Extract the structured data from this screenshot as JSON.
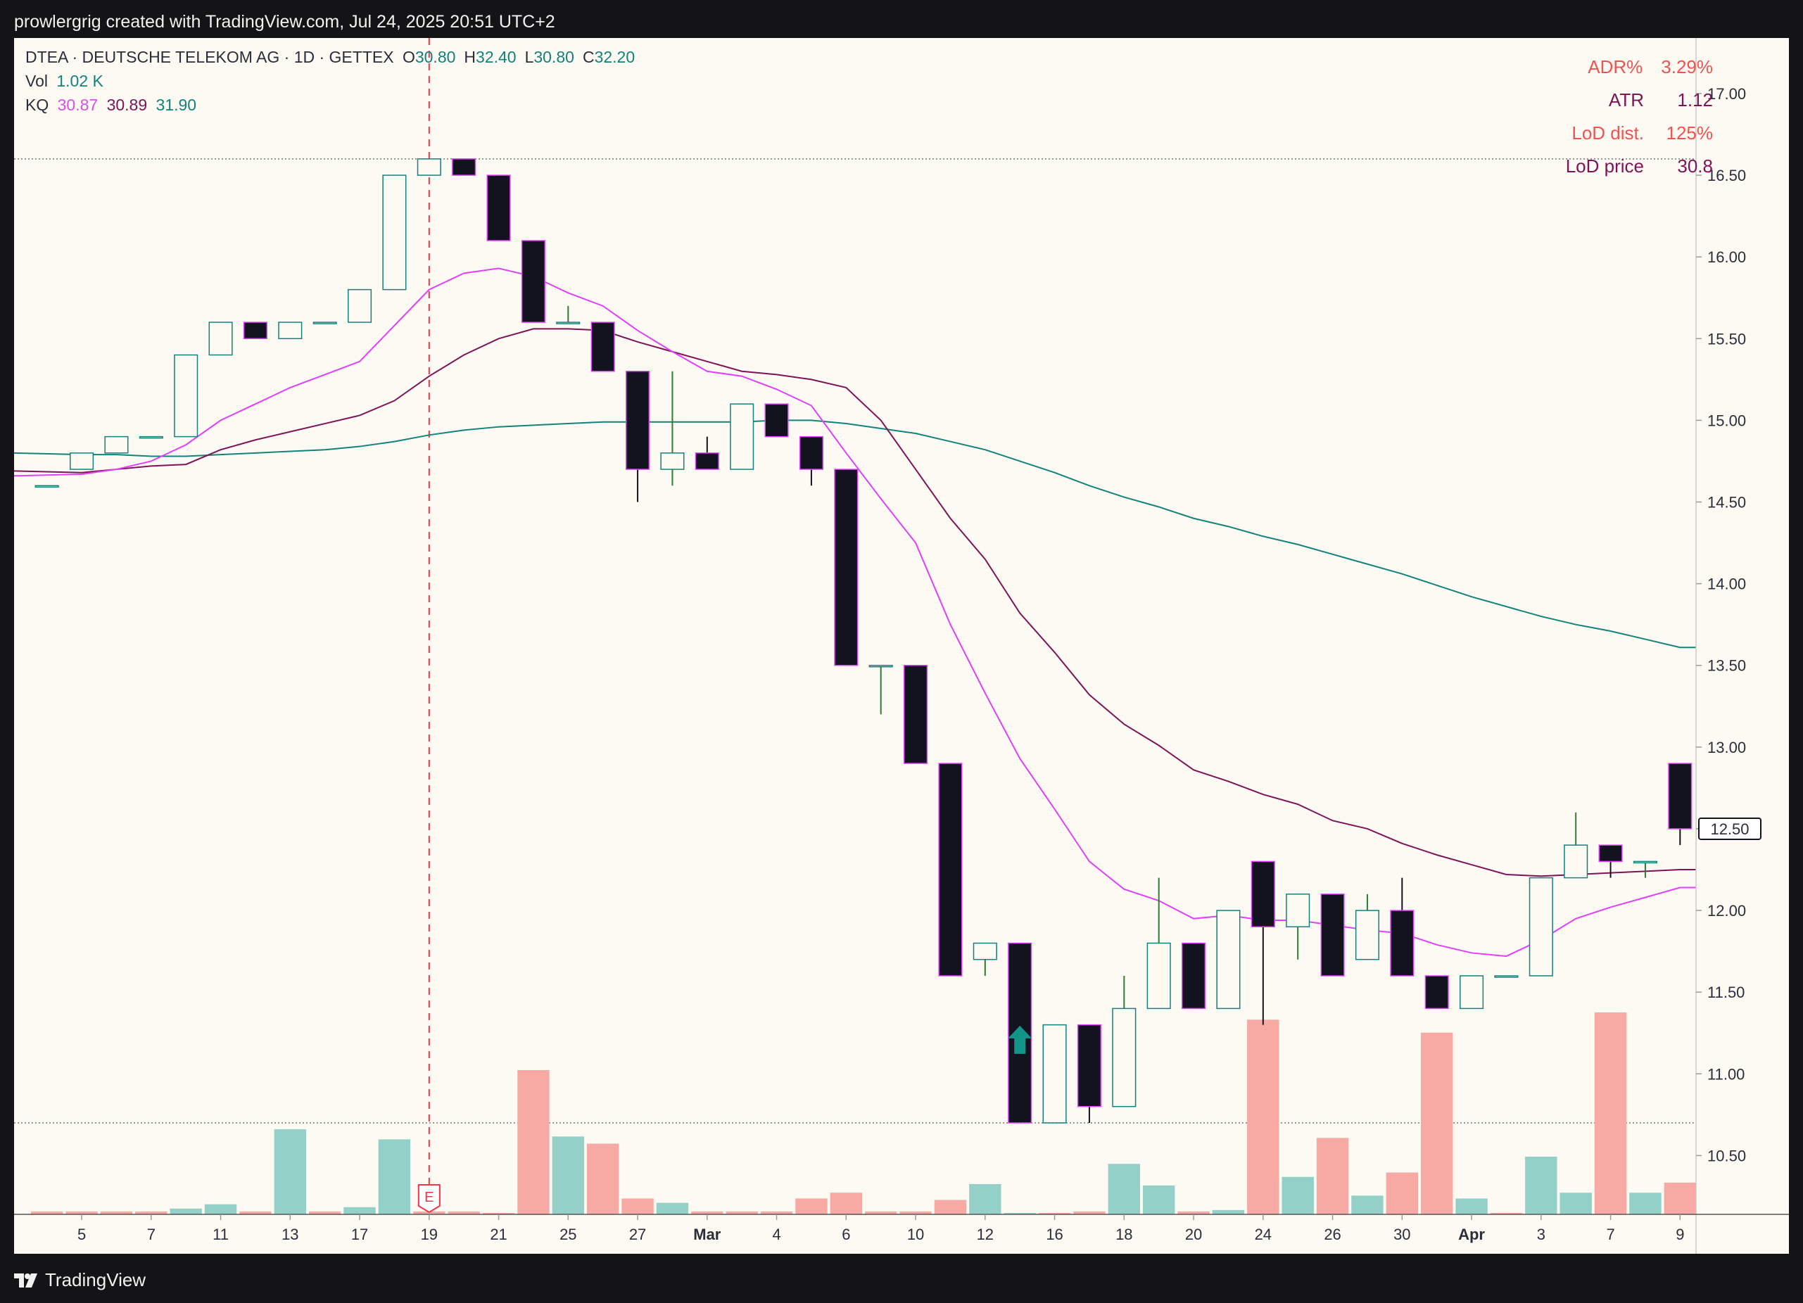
{
  "header": {
    "title": "prowlergrig created with TradingView.com, Jul 24, 2025 20:51 UTC+2"
  },
  "footer": {
    "brand": "TradingView"
  },
  "legend": {
    "symbol": "DTEA · DEUTSCHE TELEKOM AG · 1D · GETTEX",
    "ohlc": [
      {
        "key": "O",
        "value": "30.80"
      },
      {
        "key": "H",
        "value": "32.40"
      },
      {
        "key": "L",
        "value": "30.80"
      },
      {
        "key": "C",
        "value": "32.20"
      }
    ],
    "vol_label": "Vol",
    "vol_value": "1.02 K",
    "kq_label": "KQ",
    "kq_values": [
      "30.87",
      "30.89",
      "31.90"
    ]
  },
  "stats": [
    {
      "label": "ADR%",
      "value": "3.29%",
      "color": "#f05350"
    },
    {
      "label": "ATR",
      "value": "1.12",
      "color": "#7d1457"
    },
    {
      "label": "LoD dist.",
      "value": "125%",
      "color": "#f05350"
    },
    {
      "label": "LoD price",
      "value": "30.8",
      "color": "#7d1457"
    }
  ],
  "colors": {
    "bg": "#fdfaf3",
    "up_body": "#fdfaf3",
    "up_border": "#13827a",
    "down_body": "#13131f",
    "down_border": "#e040fb",
    "wick_up": "#2e7d32",
    "wick_down": "#13131f",
    "vol_up": "#93d1c8",
    "vol_down": "#f7a9a4",
    "ma_fast": "#e040fb",
    "ma_mid": "#7d1457",
    "ma_slow": "#13827a",
    "earnings": "#f23645",
    "arrow": "#129488"
  },
  "chart_data": {
    "type": "candlestick",
    "y_range": [
      10.14,
      17.34
    ],
    "y_ticks": [
      "10.50",
      "11.00",
      "11.50",
      "12.00",
      "12.50",
      "13.00",
      "13.50",
      "14.00",
      "14.50",
      "15.00",
      "15.50",
      "16.00",
      "16.50",
      "17.00"
    ],
    "x_ticks": [
      {
        "label": "5",
        "i": 1
      },
      {
        "label": "7",
        "i": 3
      },
      {
        "label": "11",
        "i": 5
      },
      {
        "label": "13",
        "i": 7
      },
      {
        "label": "17",
        "i": 9
      },
      {
        "label": "19",
        "i": 11
      },
      {
        "label": "21",
        "i": 13
      },
      {
        "label": "25",
        "i": 15
      },
      {
        "label": "27",
        "i": 17
      },
      {
        "label": "Mar",
        "i": 19,
        "bold": true
      },
      {
        "label": "4",
        "i": 21
      },
      {
        "label": "6",
        "i": 23
      },
      {
        "label": "10",
        "i": 25
      },
      {
        "label": "12",
        "i": 27
      },
      {
        "label": "16",
        "i": 29
      },
      {
        "label": "18",
        "i": 31
      },
      {
        "label": "20",
        "i": 33
      },
      {
        "label": "24",
        "i": 35
      },
      {
        "label": "26",
        "i": 37
      },
      {
        "label": "30",
        "i": 39
      },
      {
        "label": "Apr",
        "i": 41,
        "bold": true
      },
      {
        "label": "3",
        "i": 43
      },
      {
        "label": "7",
        "i": 45
      },
      {
        "label": "9",
        "i": 47
      }
    ],
    "candles": [
      [
        14.6,
        14.6,
        14.6,
        14.6
      ],
      [
        14.7,
        14.8,
        14.7,
        14.8
      ],
      [
        14.8,
        14.9,
        14.8,
        14.9
      ],
      [
        14.9,
        14.9,
        14.9,
        14.9
      ],
      [
        14.9,
        15.4,
        14.9,
        15.4
      ],
      [
        15.4,
        15.6,
        15.4,
        15.6
      ],
      [
        15.6,
        15.6,
        15.5,
        15.5
      ],
      [
        15.5,
        15.6,
        15.5,
        15.6
      ],
      [
        15.6,
        15.6,
        15.6,
        15.6
      ],
      [
        15.6,
        15.8,
        15.6,
        15.8
      ],
      [
        15.8,
        16.5,
        15.8,
        16.5
      ],
      [
        16.5,
        16.6,
        16.5,
        16.6
      ],
      [
        16.6,
        16.6,
        16.5,
        16.5
      ],
      [
        16.5,
        16.5,
        16.1,
        16.1
      ],
      [
        16.1,
        16.1,
        15.6,
        15.6
      ],
      [
        15.6,
        15.7,
        15.6,
        15.6
      ],
      [
        15.6,
        15.6,
        15.3,
        15.3
      ],
      [
        15.3,
        15.3,
        14.5,
        14.7
      ],
      [
        14.7,
        15.3,
        14.6,
        14.8
      ],
      [
        14.8,
        14.9,
        14.7,
        14.7
      ],
      [
        14.7,
        15.1,
        14.7,
        15.1
      ],
      [
        15.1,
        15.1,
        14.9,
        14.9
      ],
      [
        14.9,
        14.9,
        14.6,
        14.7
      ],
      [
        14.7,
        14.7,
        13.5,
        13.5
      ],
      [
        13.5,
        13.5,
        13.2,
        13.5
      ],
      [
        13.5,
        13.5,
        12.9,
        12.9
      ],
      [
        12.9,
        12.9,
        11.6,
        11.6
      ],
      [
        11.7,
        11.8,
        11.6,
        11.8
      ],
      [
        11.8,
        11.8,
        10.7,
        10.7
      ],
      [
        10.7,
        11.3,
        10.7,
        11.3
      ],
      [
        11.3,
        11.3,
        10.7,
        10.8
      ],
      [
        10.8,
        11.6,
        10.8,
        11.4
      ],
      [
        11.4,
        12.2,
        11.4,
        11.8
      ],
      [
        11.8,
        11.8,
        11.4,
        11.4
      ],
      [
        11.4,
        12.0,
        11.4,
        12.0
      ],
      [
        12.3,
        12.3,
        11.3,
        11.9
      ],
      [
        11.9,
        12.1,
        11.7,
        12.1
      ],
      [
        12.1,
        12.1,
        11.6,
        11.6
      ],
      [
        11.7,
        12.1,
        11.7,
        12.0
      ],
      [
        12.0,
        12.2,
        11.6,
        11.6
      ],
      [
        11.6,
        11.6,
        11.4,
        11.4
      ],
      [
        11.4,
        11.6,
        11.4,
        11.6
      ],
      [
        11.6,
        11.6,
        11.6,
        11.6
      ],
      [
        11.6,
        12.2,
        11.6,
        12.2
      ],
      [
        12.2,
        12.6,
        12.2,
        12.4
      ],
      [
        12.4,
        12.4,
        12.2,
        12.3
      ],
      [
        12.3,
        12.3,
        12.2,
        12.3
      ],
      [
        12.9,
        12.9,
        12.4,
        12.5
      ]
    ],
    "volume_scale_max": 1.0,
    "volumes": [
      0.02,
      0.02,
      0.02,
      0.02,
      0.04,
      0.07,
      0.02,
      0.59,
      0.02,
      0.05,
      0.52,
      0.02,
      0.02,
      0.01,
      1.0,
      0.54,
      0.49,
      0.11,
      0.08,
      0.02,
      0.02,
      0.02,
      0.11,
      0.15,
      0.02,
      0.02,
      0.1,
      0.21,
      0.01,
      0.01,
      0.02,
      0.35,
      0.2,
      0.02,
      0.03,
      1.35,
      0.26,
      0.53,
      0.13,
      0.29,
      1.26,
      0.11,
      0.01,
      0.4,
      0.15,
      1.4,
      0.15,
      0.22
    ],
    "volume_colors": [
      "down",
      "down",
      "down",
      "down",
      "up",
      "up",
      "down",
      "up",
      "down",
      "up",
      "up",
      "down",
      "down",
      "down",
      "down",
      "up",
      "down",
      "down",
      "up",
      "down",
      "down",
      "down",
      "down",
      "down",
      "down",
      "down",
      "down",
      "up",
      "up",
      "down",
      "down",
      "up",
      "up",
      "down",
      "up",
      "down",
      "up",
      "down",
      "up",
      "down",
      "down",
      "up",
      "down",
      "up",
      "up",
      "down",
      "up",
      "down"
    ],
    "ma_fast": [
      14.66,
      14.67,
      14.7,
      14.75,
      14.85,
      15.0,
      15.1,
      15.2,
      15.28,
      15.36,
      15.58,
      15.8,
      15.9,
      15.93,
      15.88,
      15.78,
      15.7,
      15.55,
      15.42,
      15.3,
      15.27,
      15.19,
      15.09,
      14.8,
      14.52,
      14.25,
      13.75,
      13.33,
      12.93,
      12.62,
      12.3,
      12.13,
      12.06,
      11.95,
      11.97,
      11.94,
      11.94,
      11.91,
      11.88,
      11.86,
      11.79,
      11.74,
      11.72,
      11.82,
      11.95,
      12.02,
      12.08,
      12.14
    ],
    "ma_slow_mid": [
      14.69,
      14.68,
      14.7,
      14.72,
      14.73,
      14.82,
      14.88,
      14.93,
      14.98,
      15.03,
      15.12,
      15.27,
      15.4,
      15.5,
      15.56,
      15.56,
      15.55,
      15.48,
      15.42,
      15.36,
      15.3,
      15.28,
      15.25,
      15.2,
      15.0,
      14.7,
      14.4,
      14.15,
      13.82,
      13.58,
      13.32,
      13.14,
      13.01,
      12.86,
      12.79,
      12.71,
      12.65,
      12.55,
      12.5,
      12.41,
      12.34,
      12.28,
      12.22,
      12.21,
      12.22,
      12.23,
      12.24,
      12.25
    ],
    "ma_slow": [
      14.8,
      14.79,
      14.79,
      14.78,
      14.78,
      14.79,
      14.8,
      14.81,
      14.82,
      14.84,
      14.87,
      14.91,
      14.94,
      14.96,
      14.97,
      14.98,
      14.99,
      14.99,
      14.99,
      14.99,
      14.99,
      15.0,
      15.0,
      14.98,
      14.95,
      14.92,
      14.87,
      14.82,
      14.75,
      14.68,
      14.6,
      14.53,
      14.47,
      14.4,
      14.35,
      14.29,
      14.24,
      14.18,
      14.12,
      14.06,
      13.99,
      13.92,
      13.86,
      13.8,
      13.75,
      13.71,
      13.66,
      13.61
    ],
    "earnings_marker": {
      "label": "E",
      "i": 11
    },
    "buy_arrow": {
      "i": 28,
      "price": 11.2
    },
    "hline_high": 16.6,
    "hline_low": 10.7,
    "last_price_label": "12.50",
    "last_price": 12.5
  }
}
